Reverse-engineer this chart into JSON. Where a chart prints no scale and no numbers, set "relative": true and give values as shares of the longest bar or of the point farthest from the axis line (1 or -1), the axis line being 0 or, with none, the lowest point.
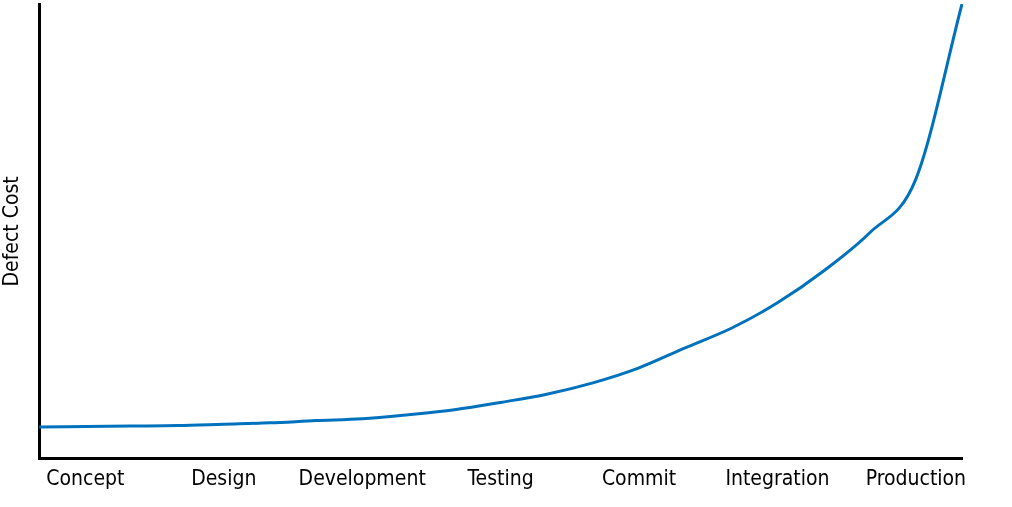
{
  "chart_data": {
    "type": "line",
    "ylabel": "Defect Cost",
    "relative": true,
    "marker": "none",
    "categories": [
      null,
      "Concept",
      null,
      null,
      "Design",
      null,
      null,
      "Development",
      null,
      null,
      "Testing",
      null,
      null,
      "Commit",
      null,
      null,
      "Integration",
      null,
      null,
      "Production",
      null
    ],
    "series": [
      {
        "color": "#0072bd",
        "values": [
          0.07,
          0.071,
          0.072,
          0.073,
          0.076,
          0.079,
          0.084,
          0.088,
          0.097,
          0.108,
          0.124,
          0.142,
          0.167,
          0.2,
          0.244,
          0.287,
          0.343,
          0.413,
          0.497,
          0.615,
          1.0
        ]
      }
    ]
  }
}
